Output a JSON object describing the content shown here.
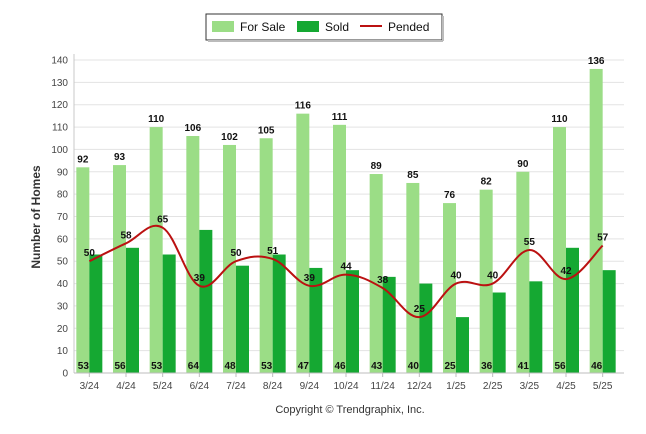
{
  "chart_data": {
    "type": "bar",
    "categories": [
      "3/24",
      "4/24",
      "5/24",
      "6/24",
      "7/24",
      "8/24",
      "9/24",
      "10/24",
      "11/24",
      "12/24",
      "1/25",
      "2/25",
      "3/25",
      "4/25",
      "5/25"
    ],
    "series": [
      {
        "name": "For Sale",
        "kind": "bar",
        "color": "#9bdd86",
        "values": [
          92,
          93,
          110,
          106,
          102,
          105,
          116,
          111,
          89,
          85,
          76,
          82,
          90,
          110,
          136
        ]
      },
      {
        "name": "Sold",
        "kind": "bar",
        "color": "#15a832",
        "values": [
          53,
          56,
          53,
          64,
          48,
          53,
          47,
          46,
          43,
          40,
          25,
          36,
          41,
          56,
          46
        ]
      },
      {
        "name": "Pended",
        "kind": "line",
        "color": "#bb1111",
        "values": [
          50,
          58,
          65,
          39,
          50,
          51,
          39,
          44,
          38,
          25,
          40,
          40,
          55,
          42,
          57
        ]
      }
    ],
    "ylabel": "Number of Homes",
    "ylim": [
      0,
      140
    ],
    "yticks": [
      0,
      10,
      20,
      30,
      40,
      50,
      60,
      70,
      80,
      90,
      100,
      110,
      120,
      130,
      140
    ],
    "grid": true,
    "legend_position": "top-center",
    "credit": "Copyright © Trendgraphix, Inc."
  }
}
